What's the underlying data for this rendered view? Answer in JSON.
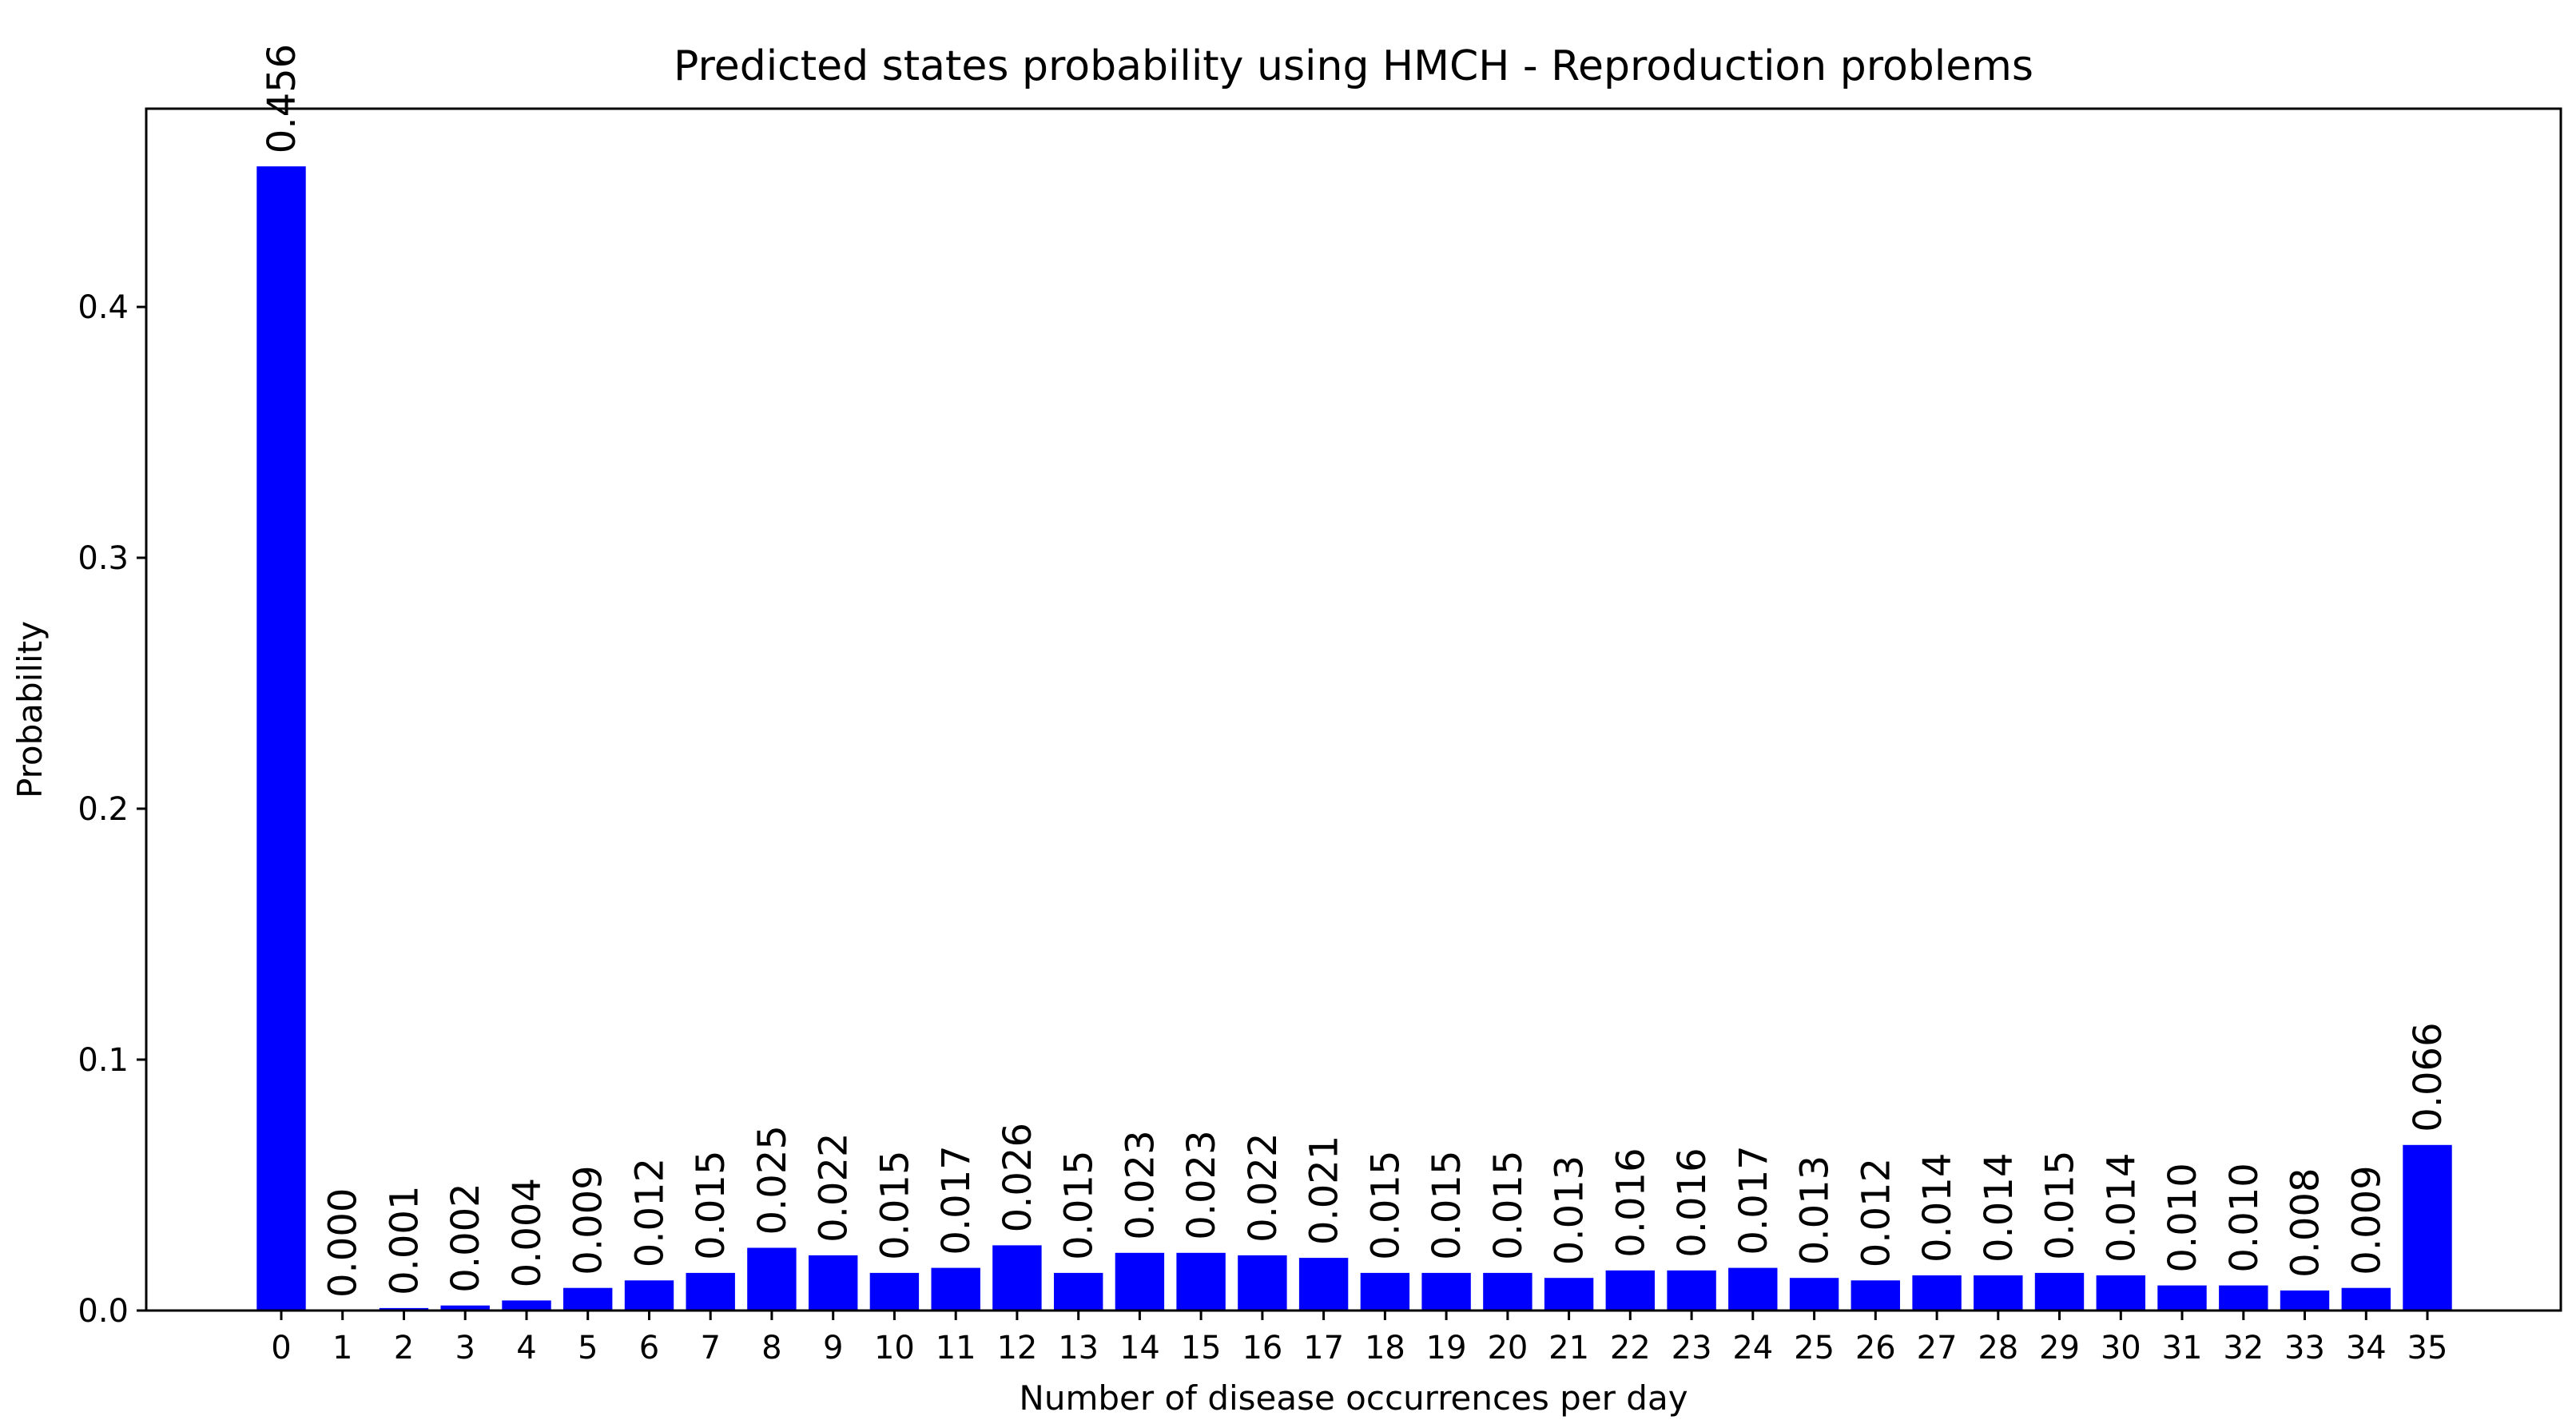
{
  "chart_data": {
    "type": "bar",
    "title": "Predicted states probability using HMCH - Reproduction problems",
    "xlabel": "Number of disease occurrences per day",
    "ylabel": "Probability",
    "categories": [
      "0",
      "1",
      "2",
      "3",
      "4",
      "5",
      "6",
      "7",
      "8",
      "9",
      "10",
      "11",
      "12",
      "13",
      "14",
      "15",
      "16",
      "17",
      "18",
      "19",
      "20",
      "21",
      "22",
      "23",
      "24",
      "25",
      "26",
      "27",
      "28",
      "29",
      "30",
      "31",
      "32",
      "33",
      "34",
      "35"
    ],
    "values": [
      0.456,
      0.0,
      0.001,
      0.002,
      0.004,
      0.009,
      0.012,
      0.015,
      0.025,
      0.022,
      0.015,
      0.017,
      0.026,
      0.015,
      0.023,
      0.023,
      0.022,
      0.021,
      0.015,
      0.015,
      0.015,
      0.013,
      0.016,
      0.016,
      0.017,
      0.013,
      0.012,
      0.014,
      0.014,
      0.015,
      0.014,
      0.01,
      0.01,
      0.008,
      0.009,
      0.066
    ],
    "data_labels": [
      "0.456",
      "0.000",
      "0.001",
      "0.002",
      "0.004",
      "0.009",
      "0.012",
      "0.015",
      "0.025",
      "0.022",
      "0.015",
      "0.017",
      "0.026",
      "0.015",
      "0.023",
      "0.023",
      "0.022",
      "0.021",
      "0.015",
      "0.015",
      "0.015",
      "0.013",
      "0.016",
      "0.016",
      "0.017",
      "0.013",
      "0.012",
      "0.014",
      "0.014",
      "0.015",
      "0.014",
      "0.010",
      "0.010",
      "0.008",
      "0.009",
      "0.066"
    ],
    "yticks": [
      0.0,
      0.1,
      0.2,
      0.3,
      0.4
    ],
    "ytick_labels": [
      "0.0",
      "0.1",
      "0.2",
      "0.3",
      "0.4"
    ],
    "ylim": [
      0,
      0.479
    ],
    "bar_color": "#0000ff",
    "grid": false,
    "legend": "none"
  }
}
